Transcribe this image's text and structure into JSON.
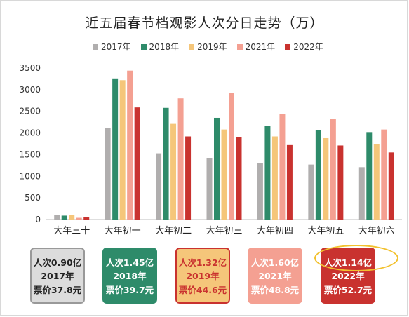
{
  "chart_data": {
    "type": "bar",
    "title": "近五届春节档观影人次分日走势（万）",
    "categories": [
      "大年三十",
      "大年初一",
      "大年初二",
      "大年初三",
      "大年初四",
      "大年初五",
      "大年初六"
    ],
    "series": [
      {
        "name": "2017年",
        "color": "#b0aeae",
        "values": [
          110,
          2120,
          1530,
          1420,
          1310,
          1270,
          1210
        ]
      },
      {
        "name": "2018年",
        "color": "#2e8b6a",
        "values": [
          90,
          3260,
          2580,
          2350,
          2160,
          2060,
          2020
        ]
      },
      {
        "name": "2019年",
        "color": "#f5c67a",
        "values": [
          100,
          3220,
          2210,
          2080,
          1920,
          1880,
          1750
        ]
      },
      {
        "name": "2021年",
        "color": "#f4a092",
        "values": [
          40,
          3440,
          2800,
          2920,
          2440,
          2320,
          2080
        ]
      },
      {
        "name": "2022年",
        "color": "#c9322f",
        "values": [
          60,
          2590,
          1920,
          1900,
          1720,
          1710,
          1550
        ]
      }
    ],
    "ylim": [
      0,
      3500
    ],
    "yticks": [
      0,
      500,
      1000,
      1500,
      2000,
      2500,
      3000,
      3500
    ],
    "grid": false,
    "legend": "top"
  },
  "cards": [
    {
      "line1": "人次0.90亿",
      "year": "2017年",
      "line3": "票价37.8元",
      "bg": "#dcdcdc",
      "border": "#999999",
      "color": "#222222"
    },
    {
      "line1": "人次1.45亿",
      "year": "2018年",
      "line3": "票价39.7元",
      "bg": "#2e8b6a",
      "border": "#2e8b6a",
      "color": "#ffffff"
    },
    {
      "line1": "人次1.32亿",
      "year": "2019年",
      "line3": "票价44.6元",
      "bg": "#f5c67a",
      "border": "#c9322f",
      "color": "#c9322f"
    },
    {
      "line1": "人次1.60亿",
      "year": "2021年",
      "line3": "票价48.8元",
      "bg": "#f4a092",
      "border": "#f4a092",
      "color": "#ffffff"
    },
    {
      "line1": "人次1.14亿",
      "year": "2022年",
      "line3": "票价52.7元",
      "bg": "#c9322f",
      "border": "#c9322f",
      "color": "#ffffff"
    }
  ]
}
